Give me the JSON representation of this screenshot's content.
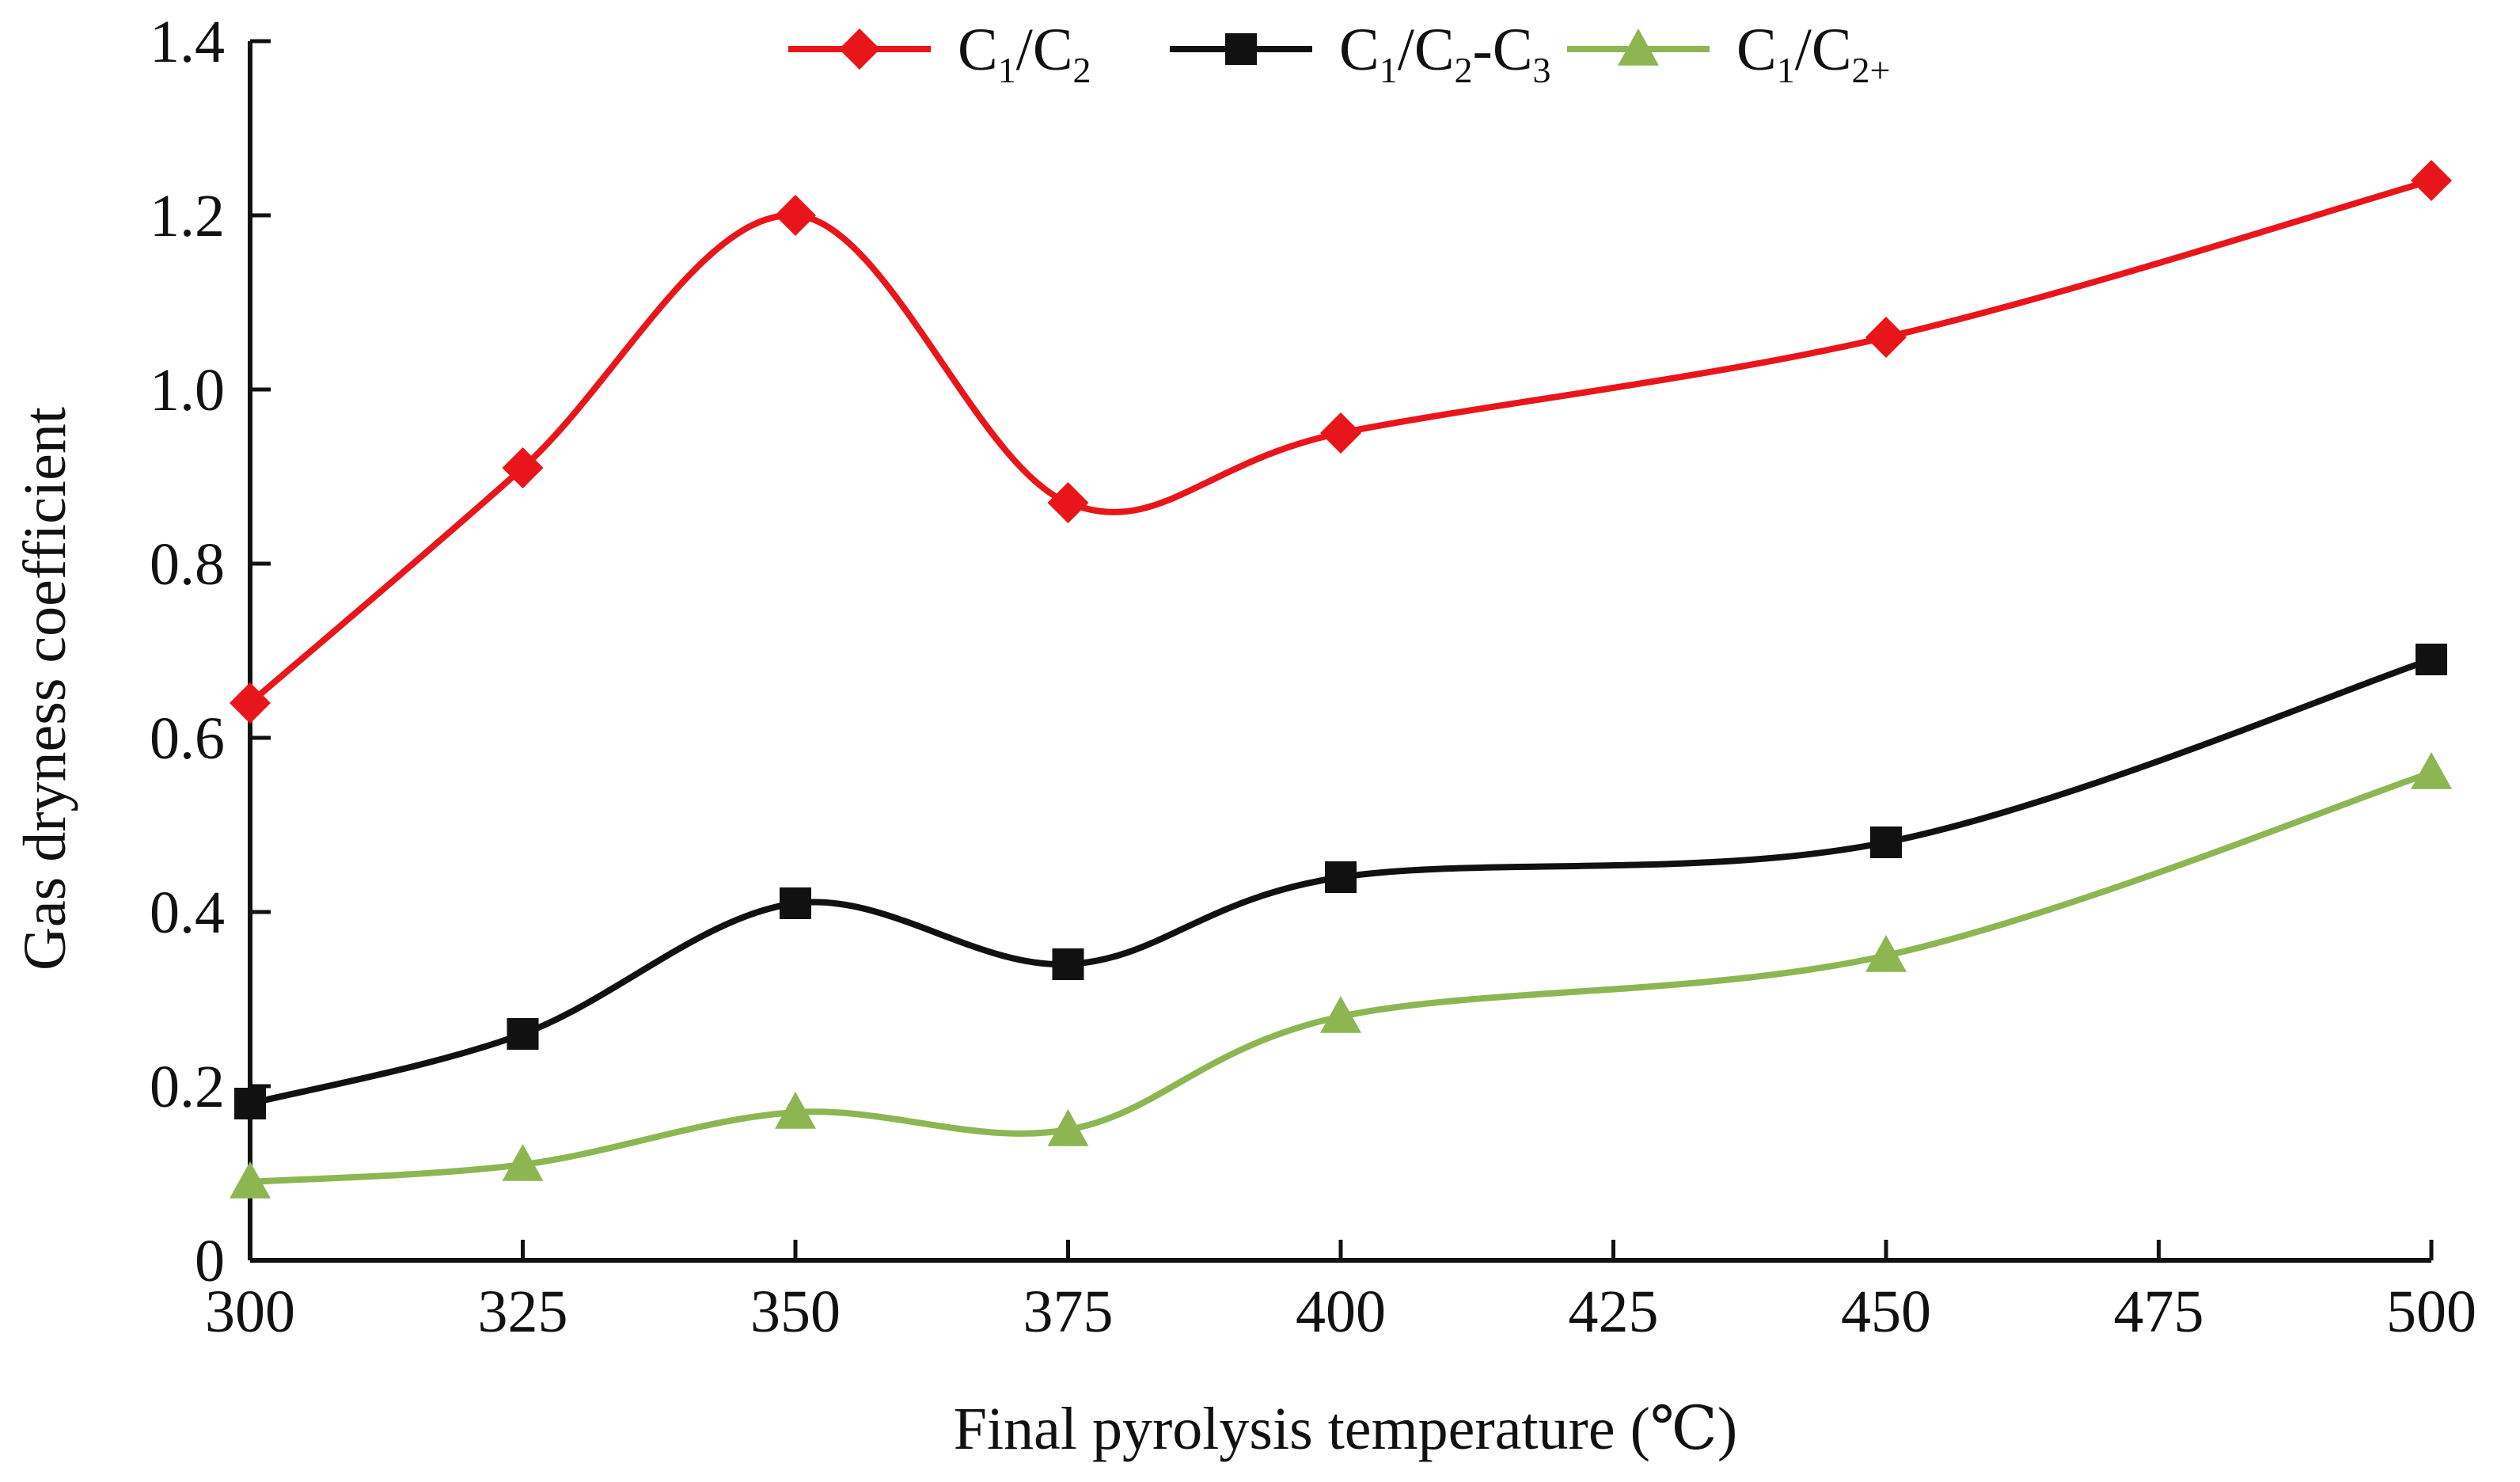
{
  "chart_data": {
    "type": "line",
    "title": "",
    "xlabel": "Final pyrolysis temperature (℃)",
    "ylabel": "Gas dryness coefficient",
    "xlim": [
      300,
      500
    ],
    "ylim": [
      0,
      1.4
    ],
    "x_ticks": [
      300,
      325,
      350,
      375,
      400,
      425,
      450,
      475,
      500
    ],
    "x_tick_labels": [
      "300",
      "325",
      "350",
      "375",
      "400",
      "425",
      "450",
      "475",
      "500"
    ],
    "y_ticks": [
      0,
      0.2,
      0.4,
      0.6,
      0.8,
      1.0,
      1.2,
      1.4
    ],
    "y_tick_labels": [
      "0",
      "0.2",
      "0.4",
      "0.6",
      "0.8",
      "1.0",
      "1.2",
      "1.4"
    ],
    "grid": false,
    "legend_position": "top",
    "x": [
      300,
      325,
      350,
      375,
      400,
      450,
      500
    ],
    "series": [
      {
        "name": "C1/C2",
        "label_parts": [
          "C",
          "1",
          "/C",
          "2"
        ],
        "color": "#e8161b",
        "marker": "diamond",
        "values": [
          0.64,
          0.91,
          1.2,
          0.87,
          0.95,
          1.06,
          1.24
        ]
      },
      {
        "name": "C1/C2-C3",
        "label_parts": [
          "C",
          "1",
          "/C",
          "2",
          "-C",
          "3"
        ],
        "color": "#111111",
        "marker": "square",
        "values": [
          0.18,
          0.26,
          0.41,
          0.34,
          0.44,
          0.48,
          0.69
        ]
      },
      {
        "name": "C1/C2+",
        "label_parts": [
          "C",
          "1",
          "/C",
          "2+"
        ],
        "color": "#8db653",
        "marker": "triangle",
        "values": [
          0.09,
          0.11,
          0.17,
          0.15,
          0.28,
          0.35,
          0.56
        ]
      }
    ]
  }
}
